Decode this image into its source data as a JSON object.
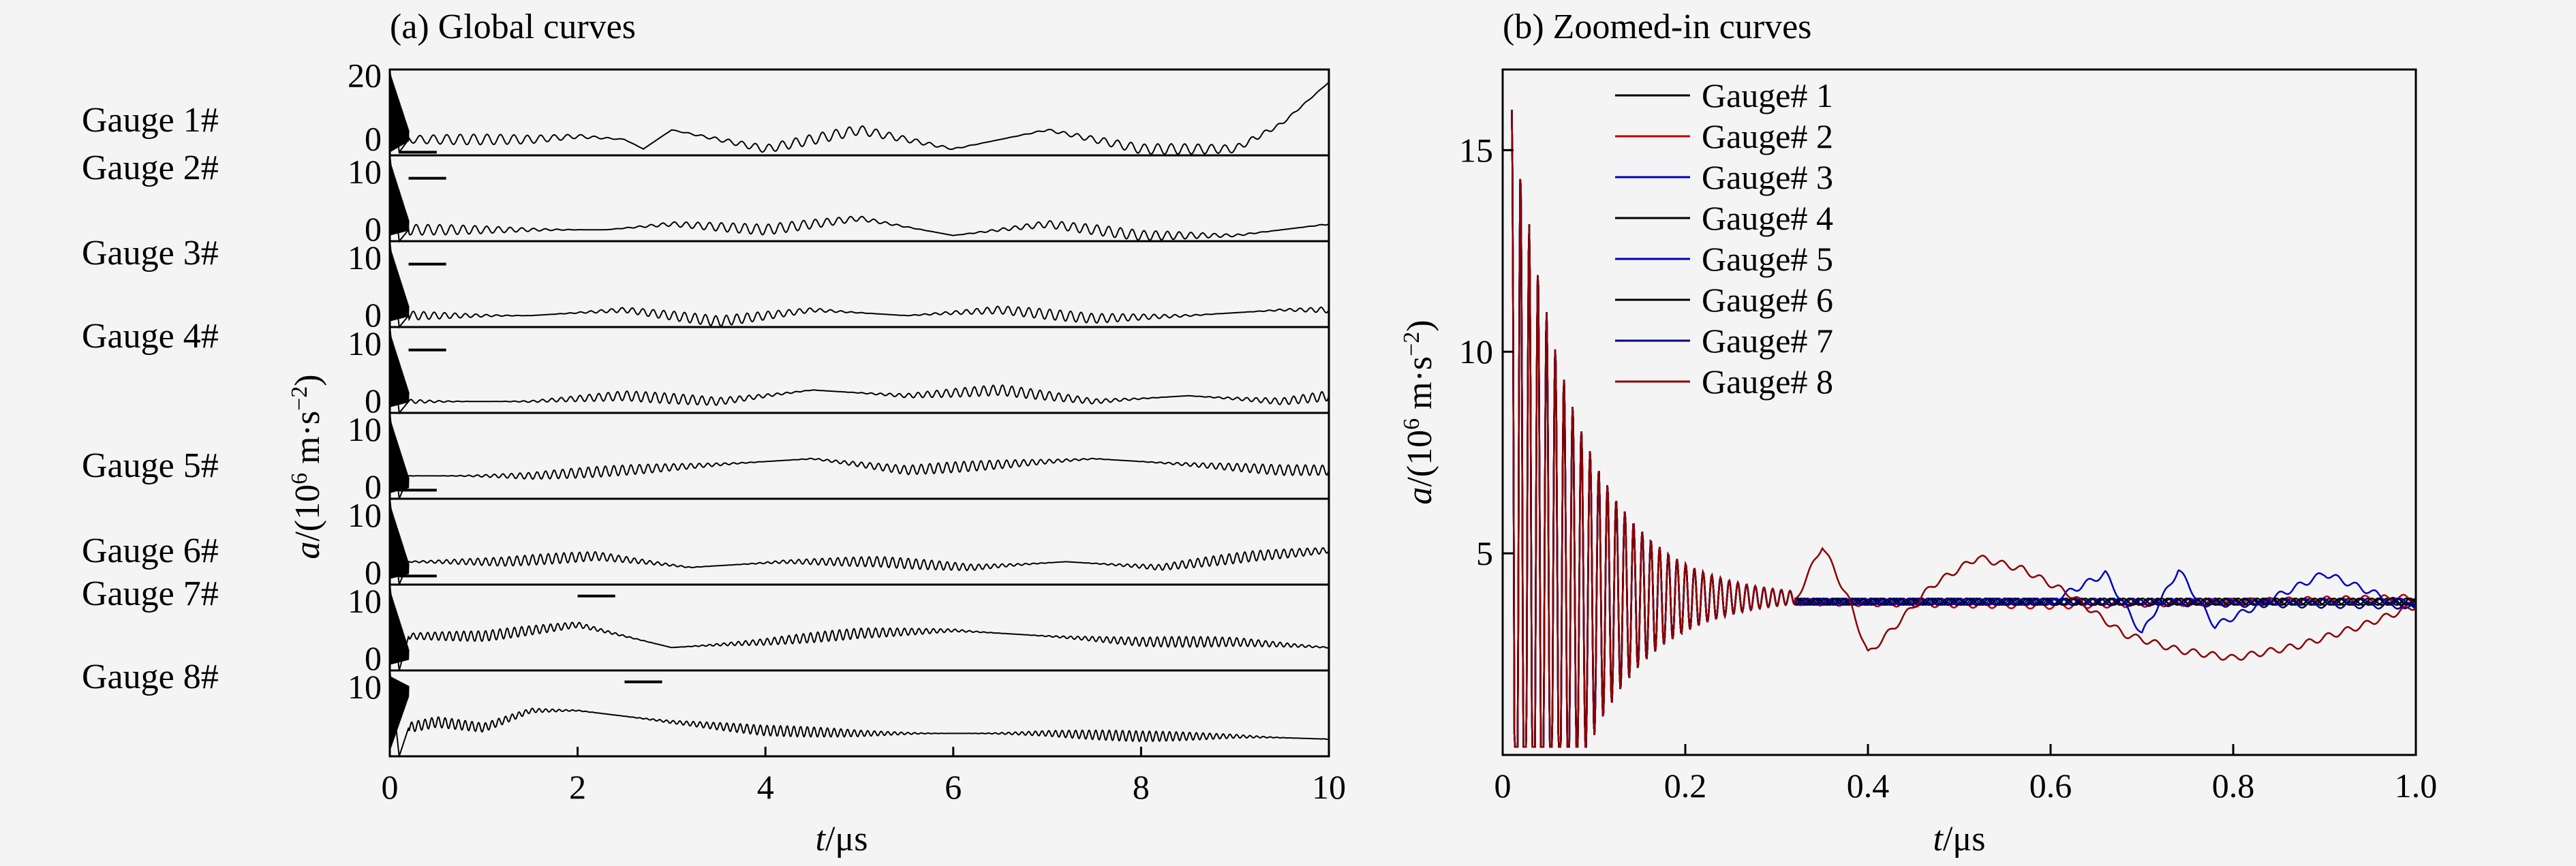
{
  "panel_a_title": "(a) Global curves",
  "panel_b_title": "(b) Zoomed-in curves",
  "chart_data": [
    {
      "type": "line",
      "title": "(a) Global curves",
      "xlabel": "t/μs",
      "ylabel": "a/(10⁶ m·s⁻²)",
      "xlim": [
        0,
        10
      ],
      "x_ticks": [
        "0",
        "2",
        "4",
        "6",
        "8",
        "10"
      ],
      "row_labels": [
        "Gauge 1#",
        "Gauge 2#",
        "Gauge 3#",
        "Gauge 4#",
        "Gauge 5#",
        "Gauge 6#",
        "Gauge 7#",
        "Gauge 8#"
      ],
      "subplots": [
        {
          "name": "Gauge 1#",
          "ylim": [
            -5,
            22
          ],
          "y_ticks": [
            "20",
            "0"
          ],
          "y_tick_values": [
            20,
            0
          ],
          "scale_bar_x": [
            0.1,
            0.5
          ],
          "scale_bar_y": -4
        },
        {
          "name": "Gauge 2#",
          "ylim": [
            -2,
            13
          ],
          "y_ticks": [
            "10",
            "0"
          ],
          "y_tick_values": [
            10,
            0
          ],
          "scale_bar_x": [
            0.2,
            0.6
          ],
          "scale_bar_y": 9
        },
        {
          "name": "Gauge 3#",
          "ylim": [
            -2,
            13
          ],
          "y_ticks": [
            "10",
            "0"
          ],
          "y_tick_values": [
            10,
            0
          ],
          "scale_bar_x": [
            0.2,
            0.6
          ],
          "scale_bar_y": 9
        },
        {
          "name": "Gauge 4#",
          "ylim": [
            -2,
            13
          ],
          "y_ticks": [
            "10",
            "0"
          ],
          "y_tick_values": [
            10,
            0
          ],
          "scale_bar_x": [
            0.2,
            0.6
          ],
          "scale_bar_y": 9
        },
        {
          "name": "Gauge 5#",
          "ylim": [
            -2,
            13
          ],
          "y_ticks": [
            "10",
            "0"
          ],
          "y_tick_values": [
            10,
            0
          ],
          "scale_bar_x": [
            0.1,
            0.5
          ],
          "scale_bar_y": -0.5
        },
        {
          "name": "Gauge 6#",
          "ylim": [
            -2,
            13
          ],
          "y_ticks": [
            "10",
            "0"
          ],
          "y_tick_values": [
            10,
            0
          ],
          "scale_bar_x": [
            0.1,
            0.5
          ],
          "scale_bar_y": -0.5
        },
        {
          "name": "Gauge 7#",
          "ylim": [
            -2,
            13
          ],
          "y_ticks": [
            "10",
            "0"
          ],
          "y_tick_values": [
            10,
            0
          ],
          "scale_bar_x": [
            2.0,
            2.4
          ],
          "scale_bar_y": 11
        },
        {
          "name": "Gauge 8#",
          "ylim": [
            -2,
            13
          ],
          "y_ticks": [
            "10"
          ],
          "y_tick_values": [
            10
          ],
          "scale_bar_x": [
            2.5,
            2.9
          ],
          "scale_bar_y": 11
        }
      ],
      "series_shapes": [
        {
          "name": "Gauge 1#",
          "points": [
            [
              0,
              22
            ],
            [
              0.1,
              -4
            ],
            [
              0.2,
              0
            ],
            [
              1.5,
              0
            ],
            [
              2.0,
              1
            ],
            [
              2.5,
              0
            ],
            [
              2.7,
              -3
            ],
            [
              3.0,
              3
            ],
            [
              4.0,
              -3
            ],
            [
              5.0,
              3
            ],
            [
              6.0,
              -3
            ],
            [
              7.0,
              3
            ],
            [
              8.0,
              -3
            ],
            [
              9.0,
              -3
            ],
            [
              9.5,
              5
            ],
            [
              10,
              18
            ]
          ]
        },
        {
          "name": "Gauge 2#",
          "points": [
            [
              0,
              13
            ],
            [
              0.1,
              -2
            ],
            [
              0.2,
              0
            ],
            [
              2.3,
              0
            ],
            [
              3.0,
              1
            ],
            [
              4.0,
              0
            ],
            [
              5.0,
              2
            ],
            [
              6.0,
              -1
            ],
            [
              7.0,
              1
            ],
            [
              8.0,
              -1
            ],
            [
              9.0,
              -1
            ],
            [
              10,
              1
            ]
          ]
        },
        {
          "name": "Gauge 3#",
          "points": [
            [
              0,
              13
            ],
            [
              0.1,
              -2
            ],
            [
              0.2,
              0
            ],
            [
              1.5,
              0
            ],
            [
              2.5,
              1
            ],
            [
              3.5,
              -1
            ],
            [
              4.5,
              1
            ],
            [
              5.5,
              0
            ],
            [
              6.5,
              1
            ],
            [
              7.5,
              -0.5
            ],
            [
              8.5,
              0
            ],
            [
              9.5,
              1
            ],
            [
              10,
              1
            ]
          ]
        },
        {
          "name": "Gauge 4#",
          "points": [
            [
              0,
              13
            ],
            [
              0.1,
              -2
            ],
            [
              0.2,
              0
            ],
            [
              1.5,
              0
            ],
            [
              2.5,
              1
            ],
            [
              3.5,
              0
            ],
            [
              4.5,
              2
            ],
            [
              5.5,
              1
            ],
            [
              6.5,
              2
            ],
            [
              7.5,
              0
            ],
            [
              8.5,
              1
            ],
            [
              9.5,
              0
            ],
            [
              10,
              1
            ]
          ]
        },
        {
          "name": "Gauge 5#",
          "points": [
            [
              0,
              13
            ],
            [
              0.1,
              -2
            ],
            [
              0.2,
              2
            ],
            [
              1.5,
              2
            ],
            [
              2.5,
              3
            ],
            [
              3.5,
              4
            ],
            [
              4.5,
              5
            ],
            [
              5.5,
              3
            ],
            [
              6.5,
              4
            ],
            [
              7.5,
              5
            ],
            [
              8.5,
              4
            ],
            [
              9.5,
              3
            ],
            [
              10,
              3
            ]
          ]
        },
        {
          "name": "Gauge 6#",
          "points": [
            [
              0,
              13
            ],
            [
              0.1,
              -2
            ],
            [
              0.2,
              2
            ],
            [
              1.2,
              2
            ],
            [
              2.2,
              3
            ],
            [
              3.2,
              1
            ],
            [
              4.2,
              2
            ],
            [
              5.2,
              2
            ],
            [
              6.2,
              1
            ],
            [
              7.2,
              2
            ],
            [
              8.2,
              1
            ],
            [
              9.2,
              3
            ],
            [
              10,
              4
            ]
          ]
        },
        {
          "name": "Gauge 7#",
          "points": [
            [
              0,
              13
            ],
            [
              0.1,
              -2
            ],
            [
              0.2,
              4
            ],
            [
              1.0,
              4
            ],
            [
              2.0,
              6
            ],
            [
              3.0,
              2
            ],
            [
              4.0,
              3
            ],
            [
              5.0,
              4.5
            ],
            [
              6.0,
              5
            ],
            [
              7.0,
              4
            ],
            [
              8.0,
              3
            ],
            [
              9.0,
              3
            ],
            [
              10,
              2
            ]
          ]
        },
        {
          "name": "Gauge 8#",
          "points": [
            [
              0,
              13
            ],
            [
              0.1,
              -2
            ],
            [
              0.2,
              3
            ],
            [
              0.5,
              4
            ],
            [
              1.0,
              3
            ],
            [
              1.5,
              6
            ],
            [
              2.0,
              6
            ],
            [
              3.0,
              4
            ],
            [
              4.0,
              2.5
            ],
            [
              5.0,
              2
            ],
            [
              6.0,
              2
            ],
            [
              7.0,
              2
            ],
            [
              8.0,
              1.5
            ],
            [
              9.0,
              1.5
            ],
            [
              10,
              1
            ]
          ]
        }
      ]
    },
    {
      "type": "line",
      "title": "(b) Zoomed-in curves",
      "xlabel": "t/μs",
      "ylabel": "a/(10⁶ m·s⁻²)",
      "xlim": [
        0,
        1.0
      ],
      "ylim": [
        0,
        17
      ],
      "x_ticks": [
        "0",
        "0.2",
        "0.4",
        "0.6",
        "0.8",
        "1.0"
      ],
      "x_tick_values": [
        0,
        0.2,
        0.4,
        0.6,
        0.8,
        1.0
      ],
      "y_ticks": [
        "15",
        "10",
        "5"
      ],
      "y_tick_values": [
        15,
        10,
        5
      ],
      "legend_placement": "top-left",
      "series": [
        {
          "name": "Gauge# 1",
          "color": "#000000",
          "points": [
            [
              0.3,
              3.8
            ],
            [
              0.6,
              3.8
            ],
            [
              1.0,
              3.8
            ]
          ]
        },
        {
          "name": "Gauge# 2",
          "color": "#c00000",
          "points": [
            [
              0.3,
              3.8
            ],
            [
              0.6,
              3.7
            ],
            [
              1.0,
              3.9
            ]
          ]
        },
        {
          "name": "Gauge# 3",
          "color": "#0000c0",
          "points": [
            [
              0.3,
              3.8
            ],
            [
              0.6,
              3.8
            ],
            [
              1.0,
              3.8
            ]
          ]
        },
        {
          "name": "Gauge# 4",
          "color": "#000000",
          "points": [
            [
              0.3,
              3.8
            ],
            [
              0.6,
              3.8
            ],
            [
              1.0,
              3.8
            ]
          ]
        },
        {
          "name": "Gauge# 5",
          "color": "#0000c0",
          "points": [
            [
              0.3,
              3.8
            ],
            [
              0.6,
              3.8
            ],
            [
              0.66,
              4.5
            ],
            [
              0.7,
              3.0
            ],
            [
              0.74,
              4.6
            ],
            [
              0.78,
              3.2
            ],
            [
              0.9,
              4.5
            ],
            [
              1.0,
              3.6
            ]
          ]
        },
        {
          "name": "Gauge# 6",
          "color": "#000000",
          "points": [
            [
              0.3,
              3.8
            ],
            [
              0.6,
              3.8
            ],
            [
              1.0,
              3.8
            ]
          ]
        },
        {
          "name": "Gauge# 7",
          "color": "#000080",
          "points": [
            [
              0.3,
              3.8
            ],
            [
              0.6,
              3.8
            ],
            [
              1.0,
              3.7
            ]
          ]
        },
        {
          "name": "Gauge# 8",
          "color": "#8b0000",
          "points": [
            [
              0.25,
              4.2
            ],
            [
              0.32,
              3.8
            ],
            [
              0.35,
              5.2
            ],
            [
              0.38,
              3.8
            ],
            [
              0.4,
              2.5
            ],
            [
              0.43,
              3.2
            ],
            [
              0.47,
              4.2
            ],
            [
              0.52,
              4.9
            ],
            [
              0.57,
              4.6
            ],
            [
              0.62,
              4.0
            ],
            [
              0.68,
              3.0
            ],
            [
              0.74,
              2.6
            ],
            [
              0.8,
              2.4
            ],
            [
              0.87,
              2.7
            ],
            [
              0.94,
              3.2
            ],
            [
              1.0,
              3.7
            ]
          ]
        }
      ],
      "decay_oscillation": {
        "start": 0.01,
        "end": 0.32,
        "peak_max": 16,
        "trough_min": 0.2,
        "settle": 3.9
      }
    }
  ]
}
